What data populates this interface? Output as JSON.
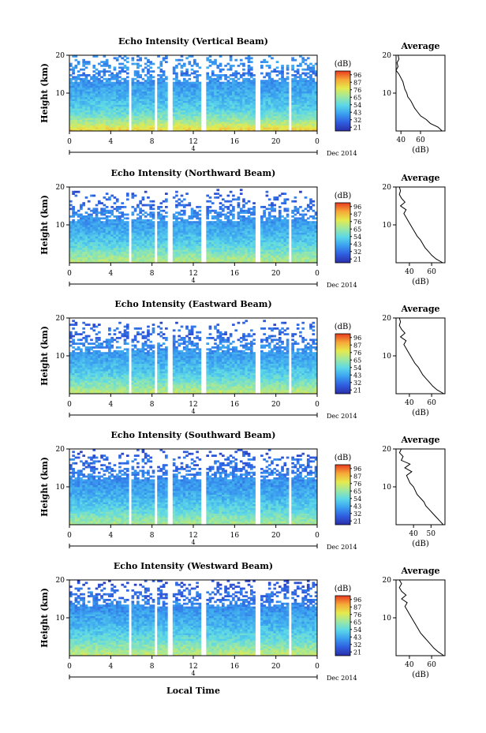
{
  "colors": {
    "axis": "#000000",
    "colormap": [
      "#2a2ea8",
      "#2f5ee0",
      "#3aa0f0",
      "#5cd8e8",
      "#9ee8a0",
      "#e6ea4c",
      "#f6a838",
      "#e83a20"
    ]
  },
  "footer": {
    "xlabel": "Local Time"
  },
  "chart_data": [
    {
      "type": "heatmap",
      "title": "Echo Intensity (Vertical Beam)",
      "ylabel": "Height (km)",
      "ylim": [
        0,
        20
      ],
      "yticks": [
        "20",
        "10"
      ],
      "xlim": [
        0,
        24
      ],
      "xticks": [
        "0",
        "4",
        "8",
        "12",
        "16",
        "20",
        "0"
      ],
      "date_label": "4",
      "date_suffix": "Dec 2014",
      "colorbar": {
        "unit": "(dB)",
        "ticks": [
          "96",
          "87",
          "76",
          "65",
          "54",
          "43",
          "32",
          "21"
        ]
      },
      "gaps_hours": [
        [
          5.8,
          6.1
        ],
        [
          8.2,
          8.6
        ],
        [
          9.6,
          9.9
        ],
        [
          12.8,
          13.3
        ],
        [
          18.0,
          18.5
        ],
        [
          21.3,
          21.5
        ],
        [
          21.9,
          22.1
        ]
      ],
      "heatmap_profile": {
        "height_km": [
          0,
          2,
          4,
          6,
          8,
          10,
          12,
          14,
          15.5,
          17,
          18.5,
          20
        ],
        "intensity_dB": [
          80,
          68,
          58,
          52,
          48,
          45,
          42,
          40,
          35,
          42,
          40,
          38
        ],
        "coverage_above_km": 13
      },
      "average_profile": {
        "title": "Average",
        "xlabel": "(dB)",
        "xticks": [
          "40",
          "60"
        ],
        "xlim": [
          35,
          85
        ],
        "ylim": [
          0,
          20
        ],
        "yticks": [
          "20",
          "10"
        ],
        "height_km": [
          0,
          1,
          2,
          3,
          4,
          5,
          6,
          7,
          8,
          9,
          10,
          11,
          12,
          13,
          14,
          15,
          16,
          17,
          18,
          19,
          20
        ],
        "values_dB": [
          82,
          78,
          70,
          66,
          60,
          57,
          54,
          52,
          50,
          47,
          46,
          44,
          43,
          42,
          40,
          38,
          35,
          37,
          36,
          38,
          37
        ]
      }
    },
    {
      "type": "heatmap",
      "title": "Echo Intensity (Northward Beam)",
      "ylabel": "Height (km)",
      "ylim": [
        0,
        20
      ],
      "yticks": [
        "20",
        "10"
      ],
      "xlim": [
        0,
        24
      ],
      "xticks": [
        "0",
        "4",
        "8",
        "12",
        "16",
        "20",
        "0"
      ],
      "date_label": "4",
      "date_suffix": "Dec 2014",
      "colorbar": {
        "unit": "(dB)",
        "ticks": [
          "96",
          "87",
          "76",
          "65",
          "54",
          "43",
          "32",
          "21"
        ]
      },
      "gaps_hours": [
        [
          5.8,
          6.1
        ],
        [
          8.2,
          8.6
        ],
        [
          9.6,
          9.9
        ],
        [
          12.8,
          13.3
        ],
        [
          18.0,
          18.5
        ],
        [
          21.3,
          21.5
        ],
        [
          21.9,
          22.1
        ]
      ],
      "heatmap_profile": {
        "height_km": [
          0,
          2,
          4,
          6,
          8,
          10,
          12,
          14,
          15.5,
          17,
          18.5,
          20
        ],
        "intensity_dB": [
          68,
          62,
          55,
          50,
          46,
          43,
          40,
          37,
          32,
          36,
          30,
          28
        ],
        "coverage_above_km": 11
      },
      "average_profile": {
        "title": "Average",
        "xlabel": "(dB)",
        "xticks": [
          "40",
          "60"
        ],
        "xlim": [
          28,
          72
        ],
        "ylim": [
          0,
          20
        ],
        "yticks": [
          "20",
          "10"
        ],
        "height_km": [
          0,
          1,
          2,
          3,
          4,
          5,
          6,
          7,
          8,
          9,
          10,
          11,
          12,
          13,
          14,
          15,
          16,
          17,
          18,
          19,
          20
        ],
        "values_dB": [
          70,
          64,
          60,
          57,
          54,
          52,
          50,
          47,
          45,
          43,
          41,
          39,
          37,
          35,
          37,
          32,
          36,
          33,
          31,
          32,
          31
        ]
      }
    },
    {
      "type": "heatmap",
      "title": "Echo Intensity (Eastward Beam)",
      "ylabel": "Height (km)",
      "ylim": [
        0,
        20
      ],
      "yticks": [
        "20",
        "10"
      ],
      "xlim": [
        0,
        24
      ],
      "xticks": [
        "0",
        "4",
        "8",
        "12",
        "16",
        "20",
        "0"
      ],
      "date_label": "4",
      "date_suffix": "Dec 2014",
      "colorbar": {
        "unit": "(dB)",
        "ticks": [
          "96",
          "87",
          "76",
          "65",
          "54",
          "43",
          "32",
          "21"
        ]
      },
      "gaps_hours": [
        [
          5.8,
          6.1
        ],
        [
          8.2,
          8.6
        ],
        [
          9.6,
          9.9
        ],
        [
          12.8,
          13.3
        ],
        [
          18.0,
          18.5
        ],
        [
          21.3,
          21.5
        ],
        [
          21.9,
          22.1
        ]
      ],
      "heatmap_profile": {
        "height_km": [
          0,
          2,
          4,
          6,
          8,
          10,
          12,
          14,
          15.5,
          17,
          18.5,
          20
        ],
        "intensity_dB": [
          70,
          62,
          55,
          50,
          46,
          43,
          40,
          37,
          32,
          36,
          30,
          28
        ],
        "coverage_above_km": 11
      },
      "average_profile": {
        "title": "Average",
        "xlabel": "(dB)",
        "xticks": [
          "40",
          "60"
        ],
        "xlim": [
          28,
          72
        ],
        "ylim": [
          0,
          20
        ],
        "yticks": [
          "20",
          "10"
        ],
        "height_km": [
          0,
          1,
          2,
          3,
          4,
          5,
          6,
          7,
          8,
          9,
          10,
          11,
          12,
          13,
          14,
          15,
          16,
          17,
          18,
          19,
          20
        ],
        "values_dB": [
          71,
          65,
          61,
          58,
          55,
          52,
          50,
          48,
          45,
          43,
          41,
          39,
          37,
          35,
          37,
          32,
          36,
          33,
          31,
          32,
          31
        ]
      }
    },
    {
      "type": "heatmap",
      "title": "Echo Intensity (Southward Beam)",
      "ylabel": "Height (km)",
      "ylim": [
        0,
        20
      ],
      "yticks": [
        "20",
        "10"
      ],
      "xlim": [
        0,
        24
      ],
      "xticks": [
        "0",
        "4",
        "8",
        "12",
        "16",
        "20",
        "0"
      ],
      "date_label": "4",
      "date_suffix": "Dec 2014",
      "colorbar": {
        "unit": "(dB)",
        "ticks": [
          "96",
          "87",
          "76",
          "65",
          "54",
          "43",
          "32",
          "21"
        ]
      },
      "gaps_hours": [
        [
          5.8,
          6.1
        ],
        [
          8.2,
          8.6
        ],
        [
          9.6,
          9.9
        ],
        [
          12.8,
          13.3
        ],
        [
          18.0,
          18.5
        ],
        [
          21.3,
          21.5
        ],
        [
          21.9,
          22.1
        ]
      ],
      "heatmap_profile": {
        "height_km": [
          0,
          2,
          4,
          6,
          8,
          10,
          12,
          14,
          15.5,
          17,
          18.5,
          20
        ],
        "intensity_dB": [
          66,
          60,
          53,
          49,
          45,
          42,
          40,
          37,
          32,
          36,
          30,
          28
        ],
        "coverage_above_km": 12
      },
      "average_profile": {
        "title": "Average",
        "xlabel": "(dB)",
        "xticks": [
          "40",
          "50"
        ],
        "xlim": [
          30,
          58
        ],
        "ylim": [
          0,
          20
        ],
        "yticks": [
          "20",
          "10"
        ],
        "height_km": [
          0,
          1,
          2,
          3,
          4,
          5,
          6,
          7,
          8,
          9,
          10,
          11,
          12,
          13,
          14,
          15,
          16,
          17,
          18,
          19,
          20
        ],
        "values_dB": [
          57,
          55,
          53,
          51,
          49,
          47,
          46,
          44,
          42,
          41,
          40,
          38,
          37,
          36,
          39,
          35,
          38,
          33,
          34,
          32,
          33
        ]
      }
    },
    {
      "type": "heatmap",
      "title": "Echo Intensity (Westward Beam)",
      "ylabel": "Height (km)",
      "ylim": [
        0,
        20
      ],
      "yticks": [
        "20",
        "10"
      ],
      "xlim": [
        0,
        24
      ],
      "xticks": [
        "0",
        "4",
        "8",
        "12",
        "16",
        "20",
        "0"
      ],
      "date_label": "4",
      "date_suffix": "Dec 2014",
      "colorbar": {
        "unit": "(dB)",
        "ticks": [
          "96",
          "87",
          "76",
          "65",
          "54",
          "43",
          "32",
          "21"
        ]
      },
      "gaps_hours": [
        [
          5.8,
          6.1
        ],
        [
          8.2,
          8.6
        ],
        [
          9.6,
          9.9
        ],
        [
          12.8,
          13.3
        ],
        [
          18.0,
          18.5
        ],
        [
          21.3,
          21.5
        ],
        [
          21.9,
          22.1
        ]
      ],
      "heatmap_profile": {
        "height_km": [
          0,
          2,
          4,
          6,
          8,
          10,
          12,
          14,
          15.5,
          17,
          18.5,
          20
        ],
        "intensity_dB": [
          70,
          63,
          56,
          51,
          47,
          44,
          41,
          38,
          33,
          36,
          30,
          28
        ],
        "coverage_above_km": 13
      },
      "average_profile": {
        "title": "Average",
        "xlabel": "(dB)",
        "xticks": [
          "40",
          "60"
        ],
        "xlim": [
          28,
          72
        ],
        "ylim": [
          0,
          20
        ],
        "yticks": [
          "20",
          "10"
        ],
        "height_km": [
          0,
          1,
          2,
          3,
          4,
          5,
          6,
          7,
          8,
          9,
          10,
          11,
          12,
          13,
          14,
          15,
          16,
          17,
          18,
          19,
          20
        ],
        "values_dB": [
          71,
          66,
          62,
          59,
          56,
          53,
          50,
          48,
          46,
          44,
          42,
          40,
          38,
          36,
          38,
          33,
          37,
          33,
          31,
          33,
          31
        ]
      }
    }
  ]
}
